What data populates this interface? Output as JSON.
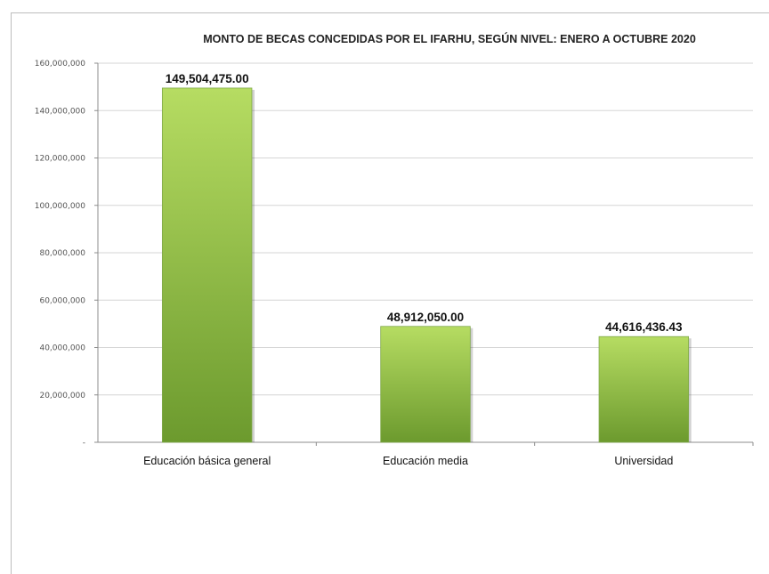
{
  "chart_data": {
    "type": "bar",
    "title": "MONTO DE BECAS CONCEDIDAS POR EL IFARHU, SEGÚN NIVEL:  ENERO A OCTUBRE 2020",
    "xlabel": "",
    "ylabel": "",
    "categories": [
      "Educación básica general",
      "Educación media",
      "Universidad"
    ],
    "values": [
      149504475.0,
      48912050.0,
      44616436.43
    ],
    "data_labels": [
      "149,504,475.00",
      "48,912,050.00",
      "44,616,436.43"
    ],
    "ylim": [
      0,
      160000000
    ],
    "yticks": [
      0,
      20000000,
      40000000,
      60000000,
      80000000,
      100000000,
      120000000,
      140000000,
      160000000
    ],
    "ytick_labels": [
      "-",
      "20,000,000",
      "40,000,000",
      "60,000,000",
      "80,000,000",
      "100,000,000",
      "120,000,000",
      "140,000,000",
      "160,000,000"
    ],
    "grid": true,
    "legend": "none",
    "colors": {
      "bar_light": "#b6dc62",
      "bar_dark": "#6c9a2e",
      "grid": "#d6d6d6",
      "axis": "#8c8c8c"
    }
  }
}
